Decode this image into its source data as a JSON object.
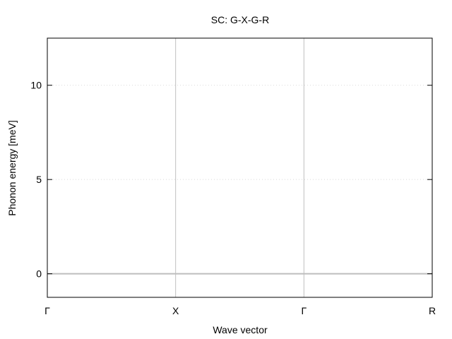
{
  "chart_data": {
    "type": "line",
    "title": "SC: G-X-G-R",
    "xlabel": "Wave vector",
    "ylabel": "Phonon energy [meV]",
    "x_ticks": [
      {
        "label": "Γ",
        "value": 0
      },
      {
        "label": "X",
        "value": 1
      },
      {
        "label": "Γ",
        "value": 2
      },
      {
        "label": "R",
        "value": 3
      }
    ],
    "y_ticks": [
      0,
      5,
      10
    ],
    "xlim": [
      0,
      3
    ],
    "ylim": [
      -1.25,
      12.5
    ],
    "grid": "y dotted",
    "series": [
      {
        "x": [
          0,
          1,
          2,
          3
        ],
        "values": [
          0,
          0,
          0,
          0
        ]
      }
    ],
    "colors": {
      "band": "#bdbdbd",
      "segment_divider": "#bfbfbf",
      "grid": "#d9d9d9",
      "frame": "#000000"
    }
  }
}
